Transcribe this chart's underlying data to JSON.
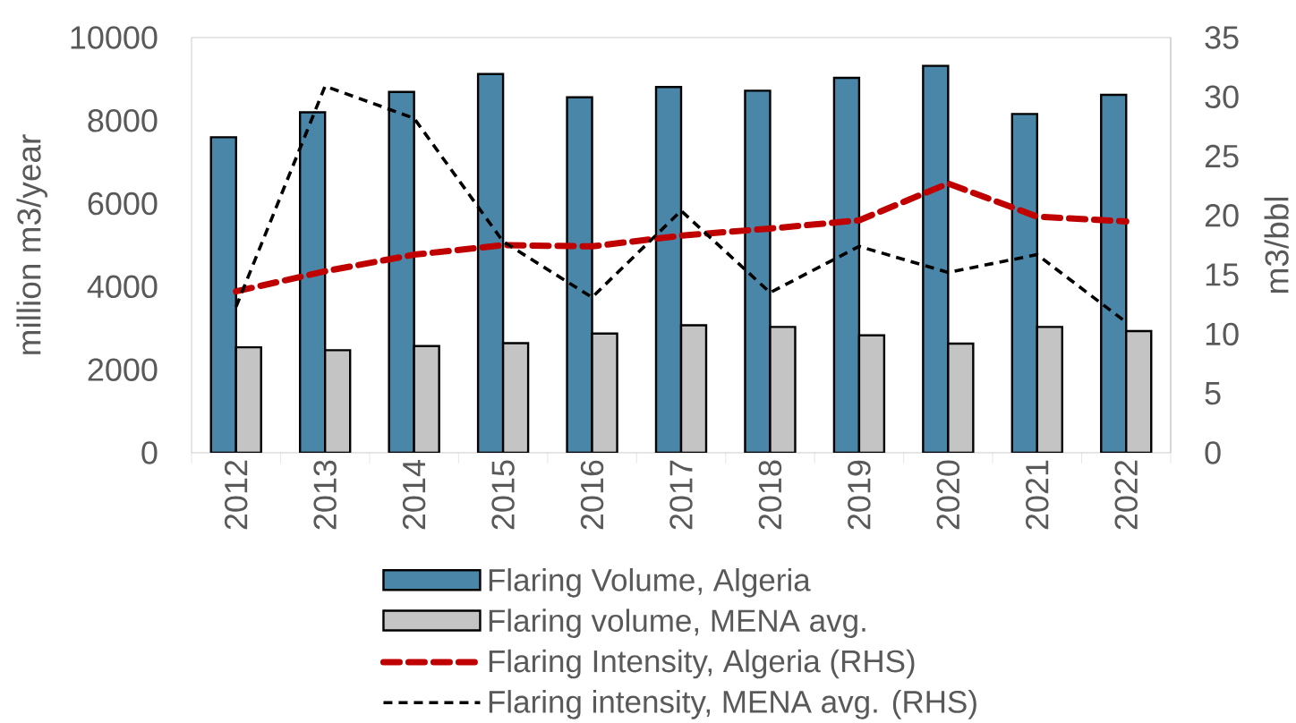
{
  "chart_data": {
    "type": "bar",
    "ylabel": "million m3/year",
    "y2label": "m3/bbl",
    "categories": [
      "2012",
      "2013",
      "2014",
      "2015",
      "2016",
      "2017",
      "2018",
      "2019",
      "2020",
      "2021",
      "2022"
    ],
    "series": [
      {
        "name": "Flaring Volume, Algeria",
        "color": "#4a86a8",
        "values": [
          7600,
          8200,
          8690,
          9120,
          8560,
          8810,
          8720,
          9030,
          9320,
          8160,
          8620
        ]
      },
      {
        "name": "Flaring volume, MENA avg.",
        "color": "#c4c4c4",
        "values": [
          2540,
          2470,
          2570,
          2640,
          2870,
          3070,
          3030,
          2830,
          2630,
          3030,
          2930
        ]
      },
      {
        "name": "Flaring Intensity, Algeria (RHS)",
        "type": "line",
        "axis": "y2",
        "line_style": "dashed",
        "color": "#c00000",
        "values": [
          13.6,
          15.3,
          16.7,
          17.5,
          17.4,
          18.3,
          18.9,
          19.6,
          22.7,
          19.9,
          19.5
        ]
      },
      {
        "name": "Flaring intensity, MENA avg. (RHS)",
        "type": "line",
        "axis": "y2",
        "line_style": "dashed",
        "color": "#000000",
        "values": [
          12.3,
          30.9,
          28.2,
          17.8,
          13.1,
          20.4,
          13.5,
          17.4,
          15.2,
          16.7,
          11.0
        ]
      }
    ],
    "ylim": [
      0,
      10000
    ],
    "yticks": [
      0,
      2000,
      4000,
      6000,
      8000,
      10000
    ],
    "y2lim": [
      0,
      35
    ],
    "y2ticks": [
      0,
      5,
      10,
      15,
      20,
      25,
      30,
      35
    ],
    "legend": "bottom"
  }
}
